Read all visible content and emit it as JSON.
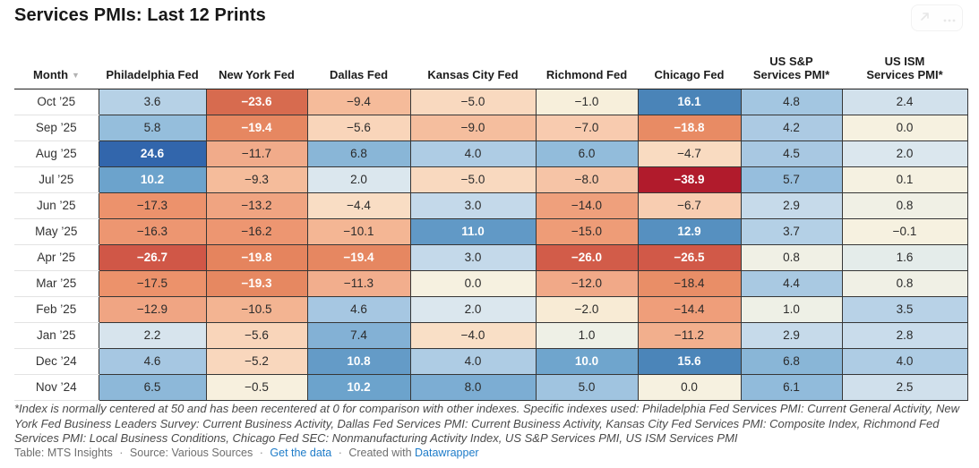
{
  "title": "Services PMIs: Last 12 Prints",
  "toolbar": {
    "share_icon": "share-arrow",
    "more_icon": "ellipsis"
  },
  "chart_data": {
    "type": "heatmap",
    "title": "Services PMIs: Last 12 Prints",
    "legend_position": "none",
    "grid": "cell-borders",
    "color_midpoint": 0,
    "value_range": [
      -38.9,
      24.6
    ],
    "columns": [
      "Month",
      "Philadelphia Fed",
      "New York Fed",
      "Dallas Fed",
      "Kansas City Fed",
      "Richmond Fed",
      "Chicago Fed",
      "US S&P\nServices PMI*",
      "US ISM\nServices PMI*"
    ],
    "sort": {
      "column": "Month",
      "direction": "desc"
    },
    "rows": [
      {
        "month": "Oct ’25",
        "values": [
          3.6,
          -23.6,
          -9.4,
          -5.0,
          -1.0,
          16.1,
          4.8,
          2.4
        ]
      },
      {
        "month": "Sep ’25",
        "values": [
          5.8,
          -19.4,
          -5.6,
          -9.0,
          -7.0,
          -18.8,
          4.2,
          0.0
        ]
      },
      {
        "month": "Aug ’25",
        "values": [
          24.6,
          -11.7,
          6.8,
          4.0,
          6.0,
          -4.7,
          4.5,
          2.0
        ]
      },
      {
        "month": "Jul ’25",
        "values": [
          10.2,
          -9.3,
          2.0,
          -5.0,
          -8.0,
          -38.9,
          5.7,
          0.1
        ]
      },
      {
        "month": "Jun ’25",
        "values": [
          -17.3,
          -13.2,
          -4.4,
          3.0,
          -14.0,
          -6.7,
          2.9,
          0.8
        ]
      },
      {
        "month": "May ’25",
        "values": [
          -16.3,
          -16.2,
          -10.1,
          11.0,
          -15.0,
          12.9,
          3.7,
          -0.1
        ]
      },
      {
        "month": "Apr ’25",
        "values": [
          -26.7,
          -19.8,
          -19.4,
          3.0,
          -26.0,
          -26.5,
          0.8,
          1.6
        ]
      },
      {
        "month": "Mar ’25",
        "values": [
          -17.5,
          -19.3,
          -11.3,
          0.0,
          -12.0,
          -18.4,
          4.4,
          0.8
        ]
      },
      {
        "month": "Feb ’25",
        "values": [
          -12.9,
          -10.5,
          4.6,
          2.0,
          -2.0,
          -14.4,
          1.0,
          3.5
        ]
      },
      {
        "month": "Jan ’25",
        "values": [
          2.2,
          -5.6,
          7.4,
          -4.0,
          1.0,
          -11.2,
          2.9,
          2.8
        ]
      },
      {
        "month": "Dec ’24",
        "values": [
          4.6,
          -5.2,
          10.8,
          4.0,
          10.0,
          15.6,
          6.8,
          4.0
        ]
      },
      {
        "month": "Nov ’24",
        "values": [
          6.5,
          -0.5,
          10.2,
          8.0,
          5.0,
          0.0,
          6.1,
          2.5
        ]
      }
    ]
  },
  "colors": {
    "header_border": "#1f1f1f",
    "cell_border": "#363636",
    "dark_text": "#2b2b2b",
    "light_text": "#ffffff",
    "link_blue": "#1e7cc9",
    "scale_stops": [
      [
        -40,
        "#ae172a"
      ],
      [
        -35,
        "#bb2a31"
      ],
      [
        -30,
        "#c84138"
      ],
      [
        -27,
        "#cf5546"
      ],
      [
        -26,
        "#d25c49"
      ],
      [
        -24,
        "#d6684d"
      ],
      [
        -22,
        "#dd7555"
      ],
      [
        -20,
        "#e4835d"
      ],
      [
        -19,
        "#e78a63"
      ],
      [
        -18,
        "#eb9069"
      ],
      [
        -16,
        "#ed9772"
      ],
      [
        -14,
        "#efa07c"
      ],
      [
        -12,
        "#f1a988"
      ],
      [
        -10,
        "#f4b795"
      ],
      [
        -8,
        "#f6c4a6"
      ],
      [
        -6,
        "#f9d2b7"
      ],
      [
        -4.5,
        "#f9dcc3"
      ],
      [
        -3,
        "#f9e5cd"
      ],
      [
        -2,
        "#f8ebd5"
      ],
      [
        -1,
        "#f7efdb"
      ],
      [
        0,
        "#f6f1e0"
      ],
      [
        0.5,
        "#f2f1e3"
      ],
      [
        1,
        "#eef0e6"
      ],
      [
        1.5,
        "#e6ede9"
      ],
      [
        2,
        "#dbe7ee"
      ],
      [
        2.5,
        "#d0e0ec"
      ],
      [
        3,
        "#c4d9ea"
      ],
      [
        3.5,
        "#b8d2e7"
      ],
      [
        4,
        "#aecce4"
      ],
      [
        4.5,
        "#a8c8e2"
      ],
      [
        5,
        "#a0c4e0"
      ],
      [
        6,
        "#92bcdb"
      ],
      [
        7,
        "#87b4d6"
      ],
      [
        8,
        "#7cadd3"
      ],
      [
        9,
        "#72a7ce"
      ],
      [
        10,
        "#6fa5cd"
      ],
      [
        11,
        "#6199c6"
      ],
      [
        12,
        "#5b94c3"
      ],
      [
        13,
        "#5590c0"
      ],
      [
        14,
        "#508bbd"
      ],
      [
        16,
        "#4a84b8"
      ],
      [
        18,
        "#4280b4"
      ],
      [
        20,
        "#3d77b2"
      ],
      [
        25,
        "#3164ac"
      ]
    ],
    "light_text_rules": {
      "min_positive": 9.9,
      "max_negative": -18.5
    }
  },
  "footnote": "*Index is normally centered at 50 and has been recentered at 0 for comparison with other indexes. Specific indexes used: Philadelphia Fed Services PMI: Current General Activity, New York Fed Business Leaders Survey: Current Business Activity, Dallas Fed Services PMI: Current Business Activity, Kansas City Fed Services PMI: Composite Index, Richmond Fed Services PMI: Local Business Conditions, Chicago Fed SEC: Nonmanufacturing Activity Index, US S&P Services PMI, US ISM Services PMI",
  "attribution": {
    "table_credit": "Table: MTS Insights",
    "source_credit": "Source: Various Sources",
    "get_data_link": "Get the data",
    "created_with": "Created with",
    "datawrapper_link": "Datawrapper",
    "separator": "·"
  }
}
